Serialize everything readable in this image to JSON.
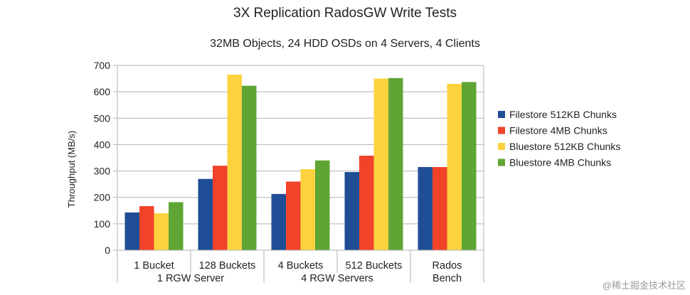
{
  "chart_data": {
    "type": "bar",
    "title": "3X Replication RadosGW Write Tests",
    "subtitle": "32MB Objects, 24 HDD OSDs on 4 Servers, 4 Clients",
    "ylabel": "Throughput (MB/s)",
    "xlabel": "",
    "ylim": [
      0,
      700
    ],
    "yticks": [
      0,
      100,
      200,
      300,
      400,
      500,
      600,
      700
    ],
    "grid": true,
    "legend_position": "right",
    "categories": [
      "1 Bucket",
      "128 Buckets",
      "4 Buckets",
      "512 Buckets",
      "Rados Bench"
    ],
    "category_lines": [
      [
        "1 Bucket"
      ],
      [
        "128 Buckets"
      ],
      [
        "4 Buckets"
      ],
      [
        "512 Buckets"
      ],
      [
        "Rados",
        "Bench"
      ]
    ],
    "groups": [
      {
        "label": "1 RGW Server",
        "categories": [
          "1 Bucket",
          "128 Buckets"
        ]
      },
      {
        "label": "4 RGW Servers",
        "categories": [
          "4 Buckets",
          "512 Buckets"
        ]
      }
    ],
    "series": [
      {
        "name": "Filestore 512KB Chunks",
        "color": "#1f4e96",
        "values": [
          143,
          270,
          213,
          296,
          315
        ]
      },
      {
        "name": "Filestore 4MB Chunks",
        "color": "#f0432a",
        "values": [
          167,
          320,
          260,
          358,
          315
        ]
      },
      {
        "name": "Bluestore 512KB Chunks",
        "color": "#fcd33f",
        "values": [
          140,
          665,
          307,
          650,
          630
        ]
      },
      {
        "name": "Bluestore 4MB Chunks",
        "color": "#5ea535",
        "values": [
          182,
          623,
          340,
          652,
          637
        ]
      }
    ]
  },
  "watermark": "@稀土掘金技术社区"
}
